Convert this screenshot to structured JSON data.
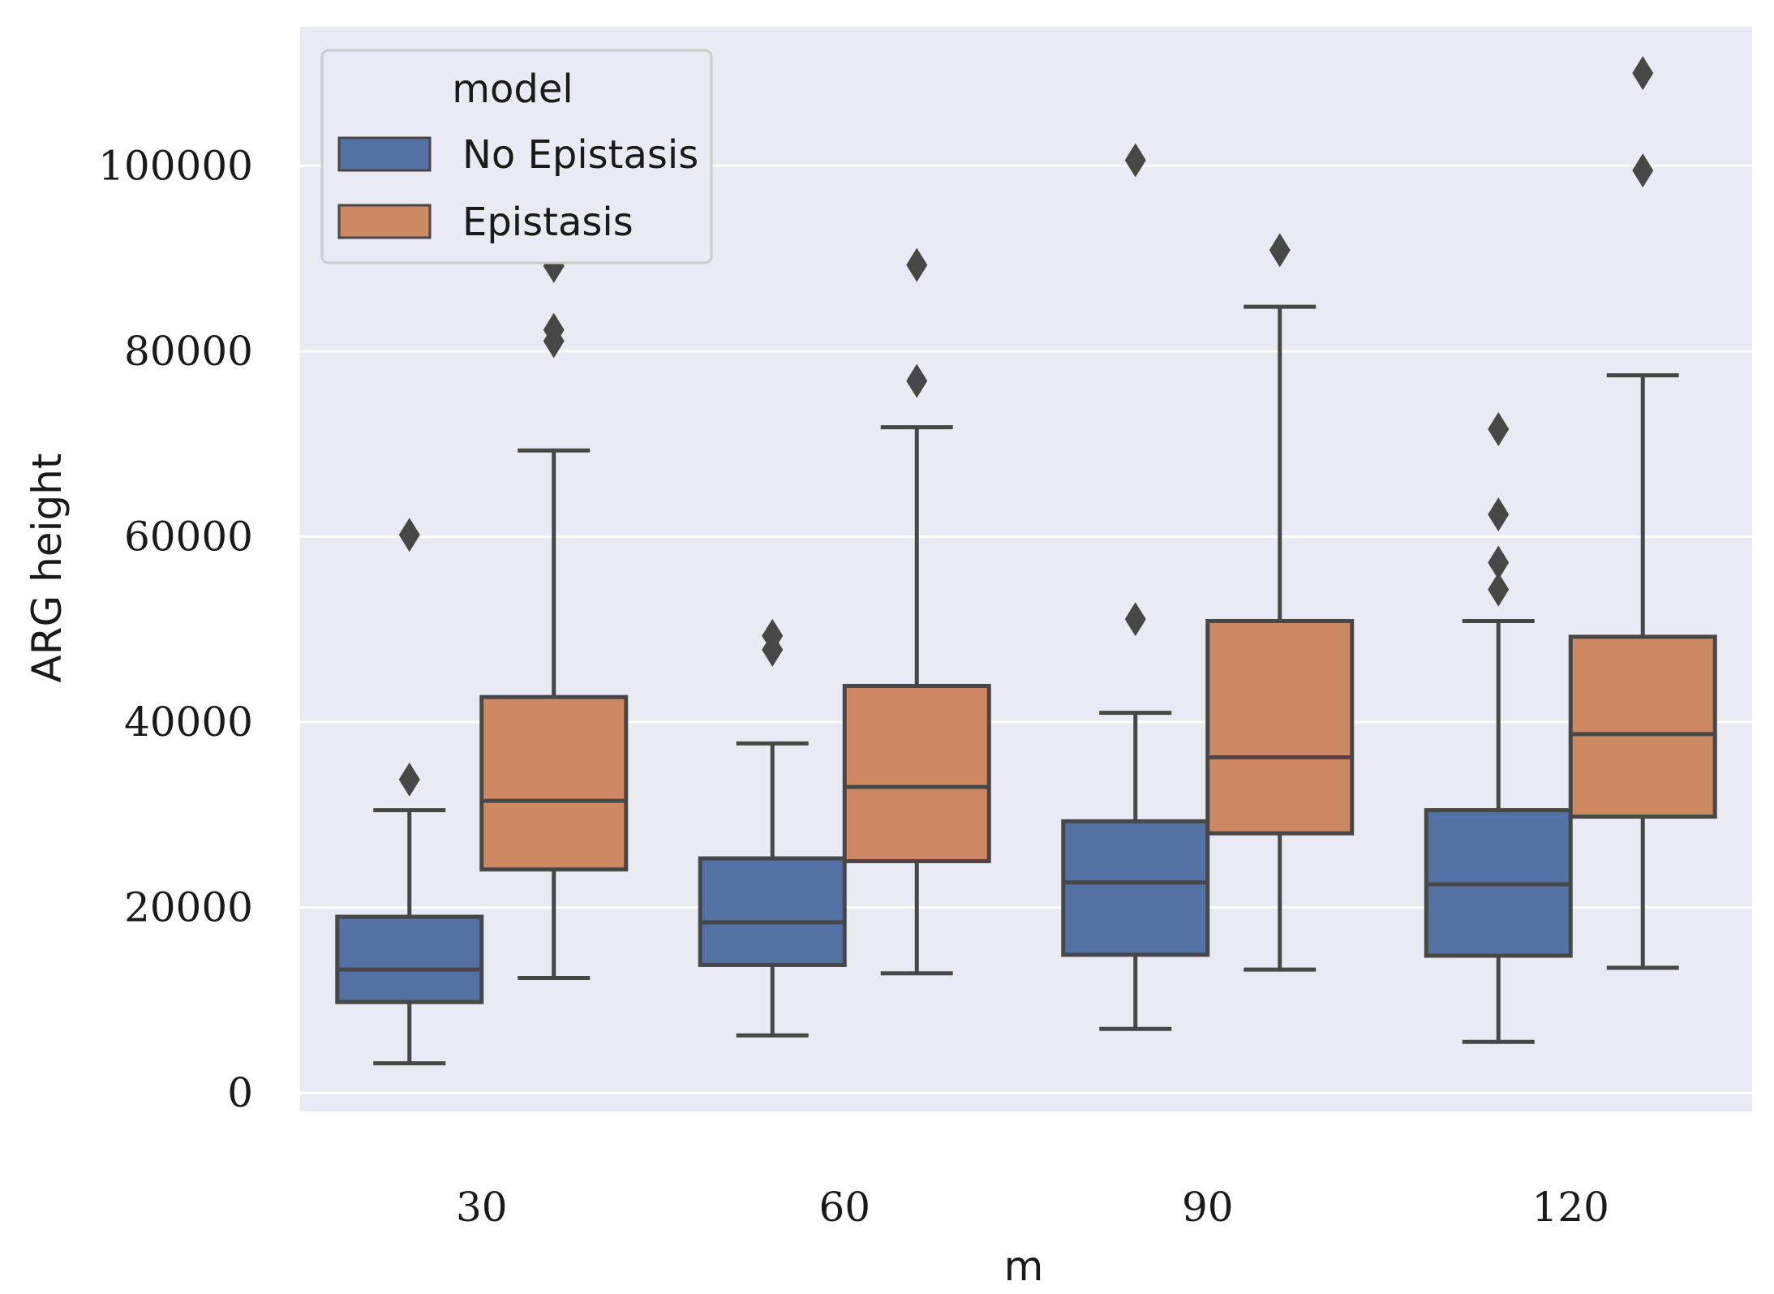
{
  "chart_data": {
    "type": "boxplot",
    "title": "",
    "xlabel": "m",
    "ylabel": "ARG height",
    "ylim": [
      -2000,
      115000
    ],
    "yticks": [
      0,
      20000,
      40000,
      60000,
      80000,
      100000
    ],
    "ytick_labels": [
      "0",
      "20000",
      "40000",
      "60000",
      "80000",
      "100000"
    ],
    "categories": [
      "30",
      "60",
      "90",
      "120"
    ],
    "grid": true,
    "legend": {
      "title": "model",
      "placement": "top-left",
      "entries": [
        "No Epistasis",
        "Epistasis"
      ]
    },
    "colors": {
      "background": "#eaeaf2",
      "grid": "#ffffff",
      "box_line": "#474747",
      "No Epistasis": "#5471a4",
      "Epistasis": "#cd8963"
    },
    "series": [
      {
        "name": "No Epistasis",
        "boxes": [
          {
            "category": "30",
            "whisker_low": 3200,
            "q1": 9800,
            "median": 13300,
            "q3": 19000,
            "whisker_high": 30500,
            "outliers": [
              33800,
              60200
            ]
          },
          {
            "category": "60",
            "whisker_low": 6200,
            "q1": 13800,
            "median": 18400,
            "q3": 25300,
            "whisker_high": 37700,
            "outliers": [
              47800,
              49300
            ]
          },
          {
            "category": "90",
            "whisker_low": 6900,
            "q1": 14900,
            "median": 22700,
            "q3": 29300,
            "whisker_high": 41000,
            "outliers": [
              51100,
              100600
            ]
          },
          {
            "category": "120",
            "whisker_low": 5500,
            "q1": 14800,
            "median": 22500,
            "q3": 30500,
            "whisker_high": 50900,
            "outliers": [
              54300,
              57200,
              62400,
              71600
            ]
          }
        ]
      },
      {
        "name": "Epistasis",
        "boxes": [
          {
            "category": "30",
            "whisker_low": 12400,
            "q1": 24100,
            "median": 31500,
            "q3": 42700,
            "whisker_high": 69300,
            "outliers": [
              81100,
              82300,
              89200
            ]
          },
          {
            "category": "60",
            "whisker_low": 12900,
            "q1": 25000,
            "median": 33000,
            "q3": 43900,
            "whisker_high": 71800,
            "outliers": [
              76800,
              89300
            ]
          },
          {
            "category": "90",
            "whisker_low": 13300,
            "q1": 28000,
            "median": 36200,
            "q3": 50900,
            "whisker_high": 84800,
            "outliers": [
              90900
            ]
          },
          {
            "category": "120",
            "whisker_low": 13500,
            "q1": 29800,
            "median": 38700,
            "q3": 49200,
            "whisker_high": 77400,
            "outliers": [
              99500,
              110000
            ]
          }
        ]
      }
    ]
  }
}
